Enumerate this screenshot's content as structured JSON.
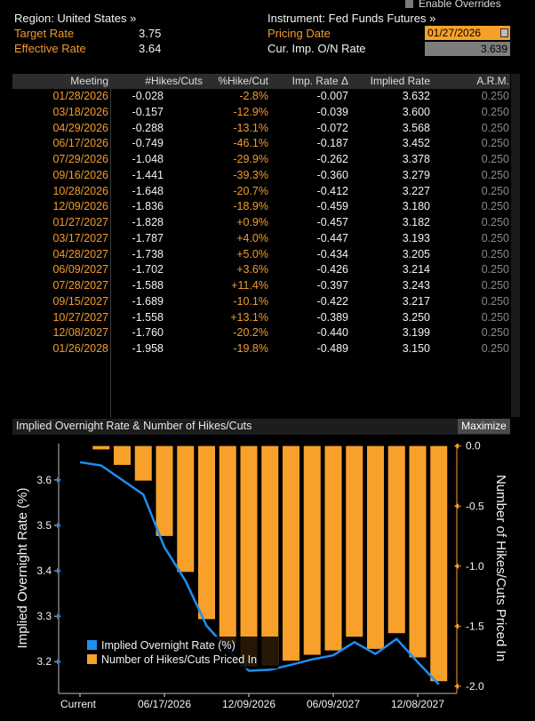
{
  "header": {
    "region_label": "Region: United States »",
    "instrument_label": "Instrument: Fed Funds Futures »",
    "target_rate_label": "Target Rate",
    "target_rate_value": "3.75",
    "effective_rate_label": "Effective Rate",
    "effective_rate_value": "3.64",
    "pricing_date_label": "Pricing Date",
    "pricing_date_value": "01/27/2026",
    "overnight_rate_label": "Cur. Imp. O/N Rate",
    "overnight_rate_value": "3.639",
    "enable_overrides_label": "Enable Overrides"
  },
  "table": {
    "columns": [
      "Meeting",
      "#Hikes/Cuts",
      "%Hike/Cut",
      "Imp. Rate Δ",
      "Implied Rate",
      "A.R.M."
    ],
    "rows": [
      [
        "01/28/2026",
        "-0.028",
        "-2.8%",
        "-0.007",
        "3.632",
        "0.250"
      ],
      [
        "03/18/2026",
        "-0.157",
        "-12.9%",
        "-0.039",
        "3.600",
        "0.250"
      ],
      [
        "04/29/2026",
        "-0.288",
        "-13.1%",
        "-0.072",
        "3.568",
        "0.250"
      ],
      [
        "06/17/2026",
        "-0.749",
        "-46.1%",
        "-0.187",
        "3.452",
        "0.250"
      ],
      [
        "07/29/2026",
        "-1.048",
        "-29.9%",
        "-0.262",
        "3.378",
        "0.250"
      ],
      [
        "09/16/2026",
        "-1.441",
        "-39.3%",
        "-0.360",
        "3.279",
        "0.250"
      ],
      [
        "10/28/2026",
        "-1.648",
        "-20.7%",
        "-0.412",
        "3.227",
        "0.250"
      ],
      [
        "12/09/2026",
        "-1.836",
        "-18.9%",
        "-0.459",
        "3.180",
        "0.250"
      ],
      [
        "01/27/2027",
        "-1.828",
        "+0.9%",
        "-0.457",
        "3.182",
        "0.250"
      ],
      [
        "03/17/2027",
        "-1.787",
        "+4.0%",
        "-0.447",
        "3.193",
        "0.250"
      ],
      [
        "04/28/2027",
        "-1.738",
        "+5.0%",
        "-0.434",
        "3.205",
        "0.250"
      ],
      [
        "06/09/2027",
        "-1.702",
        "+3.6%",
        "-0.426",
        "3.214",
        "0.250"
      ],
      [
        "07/28/2027",
        "-1.588",
        "+11.4%",
        "-0.397",
        "3.243",
        "0.250"
      ],
      [
        "09/15/2027",
        "-1.689",
        "-10.1%",
        "-0.422",
        "3.217",
        "0.250"
      ],
      [
        "10/27/2027",
        "-1.558",
        "+13.1%",
        "-0.389",
        "3.250",
        "0.250"
      ],
      [
        "12/08/2027",
        "-1.760",
        "-20.2%",
        "-0.440",
        "3.199",
        "0.250"
      ],
      [
        "01/26/2028",
        "-1.958",
        "-19.8%",
        "-0.489",
        "3.150",
        "0.250"
      ]
    ]
  },
  "chart_panel": {
    "title": "Implied Overnight Rate & Number of Hikes/Cuts",
    "maximize_label": "Maximize"
  },
  "chart_data": {
    "type": "bar+line",
    "title": "Implied Overnight Rate & Number of Hikes/Cuts",
    "categories": [
      "Current",
      "01/28/2026",
      "03/18/2026",
      "04/29/2026",
      "06/17/2026",
      "07/29/2026",
      "09/16/2026",
      "10/28/2026",
      "12/09/2026",
      "01/27/2027",
      "03/17/2027",
      "04/28/2027",
      "06/09/2027",
      "07/28/2027",
      "09/15/2027",
      "10/27/2027",
      "12/08/2027",
      "01/26/2028"
    ],
    "x_tick_labels": [
      "Current",
      "06/17/2026",
      "12/09/2026",
      "06/09/2027",
      "12/08/2027"
    ],
    "series": [
      {
        "name": "Implied Overnight Rate (%)",
        "type": "line",
        "axis": "left",
        "color": "#1f8ef1",
        "values": [
          3.639,
          3.632,
          3.6,
          3.568,
          3.452,
          3.378,
          3.279,
          3.227,
          3.18,
          3.182,
          3.193,
          3.205,
          3.214,
          3.243,
          3.217,
          3.25,
          3.199,
          3.15
        ]
      },
      {
        "name": "Number of Hikes/Cuts Priced In",
        "type": "bar",
        "axis": "right",
        "color": "#f7a12a",
        "values": [
          null,
          -0.028,
          -0.157,
          -0.288,
          -0.749,
          -1.048,
          -1.441,
          -1.648,
          -1.836,
          -1.828,
          -1.787,
          -1.738,
          -1.702,
          -1.588,
          -1.689,
          -1.558,
          -1.76,
          -1.958
        ]
      }
    ],
    "left_axis": {
      "label": "Implied Overnight Rate (%)",
      "ylim": [
        3.13,
        3.68
      ],
      "ticks": [
        3.2,
        3.3,
        3.4,
        3.5,
        3.6
      ],
      "tick_labels": [
        "3.2",
        "3.3",
        "3.4",
        "3.5",
        "3.6"
      ]
    },
    "right_axis": {
      "label": "Number of Hikes/Cuts Priced In",
      "ylim": [
        -2.06,
        0.02
      ],
      "ticks": [
        0,
        -0.5,
        -1,
        -1.5,
        -2
      ],
      "tick_labels": [
        "0.0",
        "-0.5",
        "-1.0",
        "-1.5",
        "-2.0"
      ]
    },
    "legend": {
      "placement": "bottom-left",
      "entries": [
        "Implied Overnight Rate (%)",
        "Number of Hikes/Cuts Priced In"
      ]
    }
  }
}
